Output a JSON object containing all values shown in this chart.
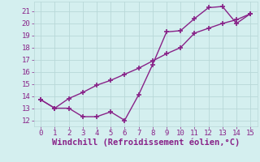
{
  "line1_x": [
    0,
    1,
    2,
    3,
    4,
    5,
    6,
    7,
    8,
    9,
    10,
    11,
    12,
    13,
    14,
    15
  ],
  "line1_y": [
    13.7,
    13.0,
    13.0,
    12.3,
    12.3,
    12.7,
    12.0,
    14.1,
    16.6,
    19.3,
    19.4,
    20.4,
    21.3,
    21.4,
    20.0,
    20.8
  ],
  "line2_x": [
    0,
    1,
    2,
    3,
    4,
    5,
    6,
    7,
    8,
    9,
    10,
    11,
    12,
    13,
    14,
    15
  ],
  "line2_y": [
    13.7,
    13.0,
    13.8,
    14.3,
    14.9,
    15.3,
    15.8,
    16.3,
    16.9,
    17.5,
    18.0,
    19.2,
    19.6,
    20.0,
    20.3,
    20.8
  ],
  "line_color": "#882288",
  "marker": "+",
  "marker_size": 4,
  "marker_lw": 1.2,
  "line_width": 1.0,
  "background_color": "#d4efef",
  "grid_color": "#b8d8d8",
  "xlabel": "Windchill (Refroidissement éolien,°C)",
  "xlabel_color": "#882288",
  "xlabel_fontsize": 7.5,
  "tick_color": "#882288",
  "tick_labelsize": 6.5,
  "xlim": [
    -0.5,
    15.5
  ],
  "ylim": [
    11.5,
    21.8
  ],
  "xticks": [
    0,
    1,
    2,
    3,
    4,
    5,
    6,
    7,
    8,
    9,
    10,
    11,
    12,
    13,
    14,
    15
  ],
  "yticks": [
    12,
    13,
    14,
    15,
    16,
    17,
    18,
    19,
    20,
    21
  ]
}
